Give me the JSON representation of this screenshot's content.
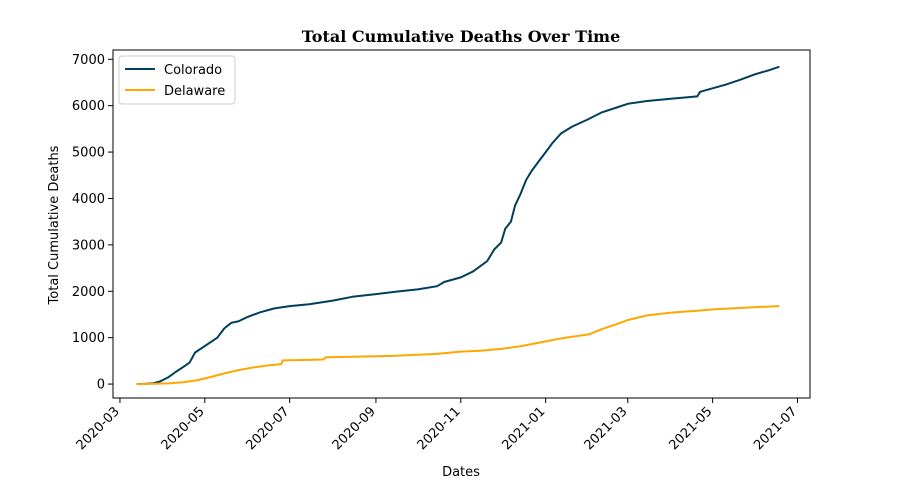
{
  "chart_data": {
    "type": "line",
    "title": "Total Cumulative Deaths Over Time",
    "xlabel": "Dates",
    "ylabel": "Total Cumulative Deaths",
    "xlim": [
      "2020-02-25",
      "2021-07-10"
    ],
    "ylim": [
      -300,
      7200
    ],
    "x_ticks": [
      "2020-03",
      "2020-05",
      "2020-07",
      "2020-09",
      "2020-11",
      "2021-01",
      "2021-03",
      "2021-05",
      "2021-07"
    ],
    "y_ticks": [
      0,
      1000,
      2000,
      3000,
      4000,
      5000,
      6000,
      7000
    ],
    "grid": false,
    "legend_position": "top-left",
    "series": [
      {
        "name": "Colorado",
        "color": "#003f5c",
        "points": [
          [
            "2020-03-13",
            0
          ],
          [
            "2020-03-20",
            5
          ],
          [
            "2020-03-25",
            20
          ],
          [
            "2020-03-30",
            60
          ],
          [
            "2020-04-05",
            150
          ],
          [
            "2020-04-10",
            260
          ],
          [
            "2020-04-15",
            360
          ],
          [
            "2020-04-20",
            460
          ],
          [
            "2020-04-24",
            680
          ],
          [
            "2020-04-30",
            800
          ],
          [
            "2020-05-05",
            900
          ],
          [
            "2020-05-10",
            1000
          ],
          [
            "2020-05-15",
            1200
          ],
          [
            "2020-05-20",
            1320
          ],
          [
            "2020-05-25",
            1350
          ],
          [
            "2020-06-01",
            1450
          ],
          [
            "2020-06-10",
            1550
          ],
          [
            "2020-06-20",
            1630
          ],
          [
            "2020-07-01",
            1680
          ],
          [
            "2020-07-15",
            1720
          ],
          [
            "2020-08-01",
            1800
          ],
          [
            "2020-08-15",
            1880
          ],
          [
            "2020-09-01",
            1940
          ],
          [
            "2020-09-15",
            1990
          ],
          [
            "2020-10-01",
            2040
          ],
          [
            "2020-10-15",
            2110
          ],
          [
            "2020-10-20",
            2200
          ],
          [
            "2020-11-01",
            2300
          ],
          [
            "2020-11-10",
            2430
          ],
          [
            "2020-11-20",
            2650
          ],
          [
            "2020-11-25",
            2900
          ],
          [
            "2020-11-30",
            3050
          ],
          [
            "2020-12-03",
            3350
          ],
          [
            "2020-12-07",
            3500
          ],
          [
            "2020-12-10",
            3850
          ],
          [
            "2020-12-14",
            4100
          ],
          [
            "2020-12-18",
            4400
          ],
          [
            "2020-12-22",
            4600
          ],
          [
            "2020-12-27",
            4800
          ],
          [
            "2021-01-01",
            5000
          ],
          [
            "2021-01-06",
            5200
          ],
          [
            "2021-01-12",
            5400
          ],
          [
            "2021-01-20",
            5550
          ],
          [
            "2021-01-31",
            5700
          ],
          [
            "2021-02-10",
            5850
          ],
          [
            "2021-02-20",
            5950
          ],
          [
            "2021-03-01",
            6040
          ],
          [
            "2021-03-15",
            6100
          ],
          [
            "2021-04-01",
            6150
          ],
          [
            "2021-04-20",
            6200
          ],
          [
            "2021-04-22",
            6300
          ],
          [
            "2021-05-10",
            6450
          ],
          [
            "2021-05-20",
            6550
          ],
          [
            "2021-06-01",
            6680
          ],
          [
            "2021-06-10",
            6760
          ],
          [
            "2021-06-18",
            6840
          ]
        ]
      },
      {
        "name": "Delaware",
        "color": "#ffa600",
        "points": [
          [
            "2020-03-13",
            0
          ],
          [
            "2020-03-25",
            5
          ],
          [
            "2020-04-05",
            15
          ],
          [
            "2020-04-15",
            40
          ],
          [
            "2020-04-25",
            80
          ],
          [
            "2020-05-05",
            150
          ],
          [
            "2020-05-15",
            230
          ],
          [
            "2020-05-25",
            300
          ],
          [
            "2020-06-05",
            360
          ],
          [
            "2020-06-15",
            400
          ],
          [
            "2020-06-25",
            430
          ],
          [
            "2020-06-26",
            510
          ],
          [
            "2020-07-10",
            520
          ],
          [
            "2020-07-25",
            530
          ],
          [
            "2020-07-27",
            580
          ],
          [
            "2020-08-15",
            590
          ],
          [
            "2020-09-01",
            600
          ],
          [
            "2020-09-15",
            610
          ],
          [
            "2020-10-01",
            630
          ],
          [
            "2020-10-15",
            650
          ],
          [
            "2020-11-01",
            700
          ],
          [
            "2020-11-15",
            720
          ],
          [
            "2020-12-01",
            760
          ],
          [
            "2020-12-15",
            820
          ],
          [
            "2021-01-01",
            920
          ],
          [
            "2021-01-15",
            1000
          ],
          [
            "2021-02-01",
            1070
          ],
          [
            "2021-02-10",
            1180
          ],
          [
            "2021-02-20",
            1280
          ],
          [
            "2021-03-01",
            1380
          ],
          [
            "2021-03-15",
            1480
          ],
          [
            "2021-04-01",
            1540
          ],
          [
            "2021-04-20",
            1580
          ],
          [
            "2021-05-01",
            1610
          ],
          [
            "2021-05-20",
            1640
          ],
          [
            "2021-06-01",
            1660
          ],
          [
            "2021-06-18",
            1680
          ]
        ]
      }
    ]
  }
}
